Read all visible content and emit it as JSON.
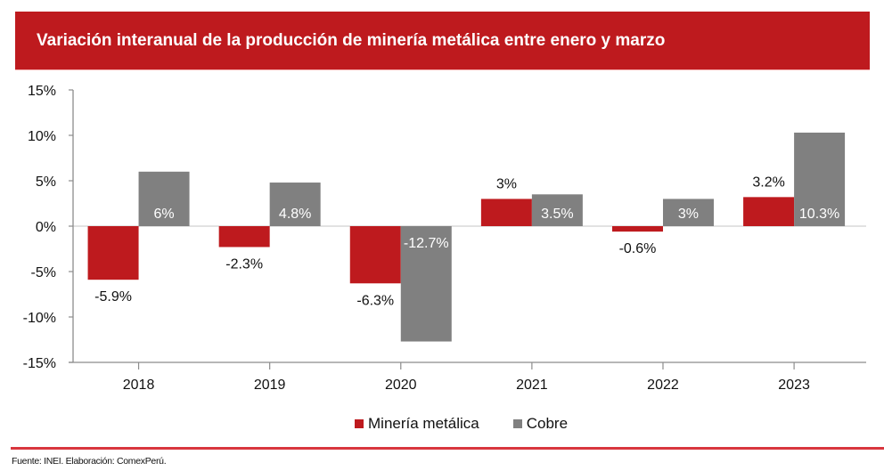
{
  "header": {
    "title": "Variación interanual de la producción de minería metálica entre enero y marzo"
  },
  "chart_data": {
    "type": "bar",
    "title": "Variación interanual de la producción de minería metálica entre enero y marzo",
    "xlabel": "",
    "ylabel": "",
    "categories": [
      "2018",
      "2019",
      "2020",
      "2021",
      "2022",
      "2023"
    ],
    "series": [
      {
        "name": "Minería metálica",
        "color": "#be1a1e",
        "values": [
          -5.9,
          -2.3,
          -6.3,
          3.0,
          -0.6,
          3.2
        ],
        "labels": [
          "-5.9%",
          "-2.3%",
          "-6.3%",
          "3%",
          "-0.6%",
          "3.2%"
        ],
        "label_color": "#111111"
      },
      {
        "name": "Cobre",
        "color": "#808080",
        "values": [
          6.0,
          4.8,
          -12.7,
          3.5,
          3.0,
          10.3
        ],
        "labels": [
          "6%",
          "4.8%",
          "-12.7%",
          "3.5%",
          "3%",
          "10.3%"
        ],
        "label_color": "#ffffff"
      }
    ],
    "ylim": [
      -15,
      15
    ],
    "yticks": [
      15,
      10,
      5,
      0,
      -5,
      -10,
      -15
    ],
    "ytick_labels": [
      "15%",
      "10%",
      "5%",
      "0%",
      "-5%",
      "-10%",
      "-15%"
    ],
    "grid": false,
    "legend": "bottom-center",
    "legend_entries": [
      "Minería metálica",
      "Cobre"
    ]
  },
  "footer": {
    "source": "Fuente: INEI. Elaboración: ComexPerú."
  }
}
